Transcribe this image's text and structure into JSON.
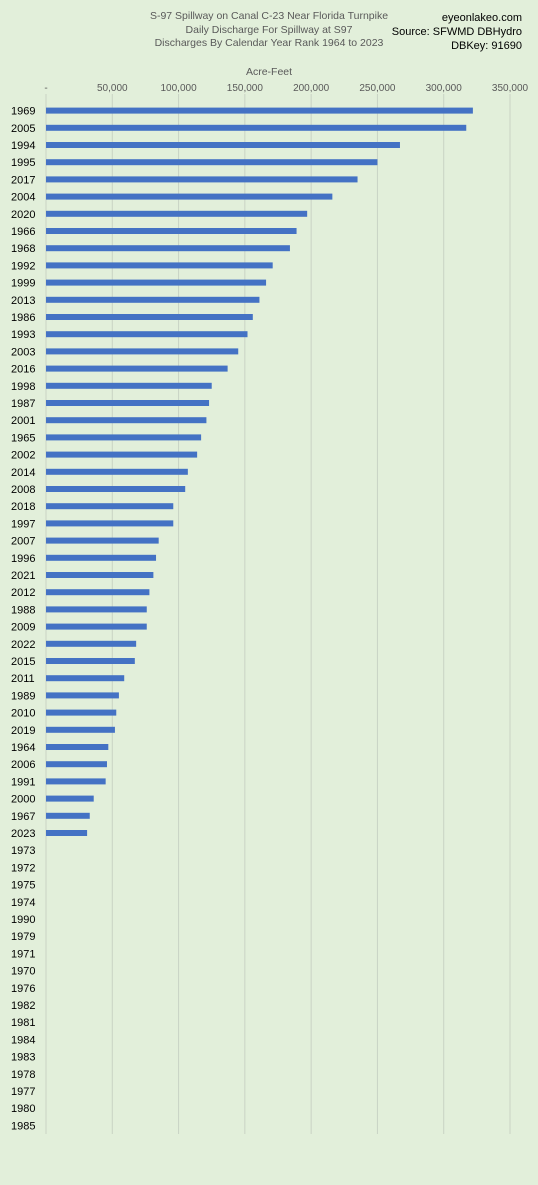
{
  "header": {
    "title_line1": "S-97 Spillway on Canal C-23 Near Florida Turnpike",
    "title_line2": "Daily Discharge For Spillway at S97",
    "title_line3": "Discharges By Calendar Year Rank 1964 to 2023",
    "site": "eyeonlakeo.com",
    "source": "Source: SFWMD DBHydro",
    "dbkey": "DBKey: 91690"
  },
  "chart_data": {
    "type": "bar",
    "orientation": "horizontal",
    "xlabel": "Acre-Feet",
    "xlim": [
      0,
      350000
    ],
    "x_ticks": [
      "-",
      "50,000",
      "100,000",
      "150,000",
      "200,000",
      "250,000",
      "300,000",
      "350,000"
    ],
    "x_tick_values": [
      0,
      50000,
      100000,
      150000,
      200000,
      250000,
      300000,
      350000
    ],
    "grid": true,
    "bar_color": "#4472c4",
    "categories": [
      "1969",
      "2005",
      "1994",
      "1995",
      "2017",
      "2004",
      "2020",
      "1966",
      "1968",
      "1992",
      "1999",
      "2013",
      "1986",
      "1993",
      "2003",
      "2016",
      "1998",
      "1987",
      "2001",
      "1965",
      "2002",
      "2014",
      "2008",
      "2018",
      "1997",
      "2007",
      "1996",
      "2021",
      "2012",
      "1988",
      "2009",
      "2022",
      "2015",
      "2011",
      "1989",
      "2010",
      "2019",
      "1964",
      "2006",
      "1991",
      "2000",
      "1967",
      "2023",
      "1973",
      "1972",
      "1975",
      "1974",
      "1990",
      "1979",
      "1971",
      "1970",
      "1976",
      "1982",
      "1981",
      "1984",
      "1983",
      "1978",
      "1977",
      "1980",
      "1985"
    ],
    "values": [
      322000,
      317000,
      267000,
      250000,
      235000,
      216000,
      197000,
      189000,
      184000,
      171000,
      166000,
      161000,
      156000,
      152000,
      145000,
      137000,
      125000,
      123000,
      121000,
      117000,
      114000,
      107000,
      105000,
      96000,
      96000,
      85000,
      83000,
      81000,
      78000,
      76000,
      76000,
      68000,
      67000,
      59000,
      55000,
      53000,
      52000,
      47000,
      46000,
      45000,
      36000,
      33000,
      31000,
      0,
      0,
      0,
      0,
      0,
      0,
      0,
      0,
      0,
      0,
      0,
      0,
      0,
      0,
      0,
      0,
      0
    ]
  }
}
